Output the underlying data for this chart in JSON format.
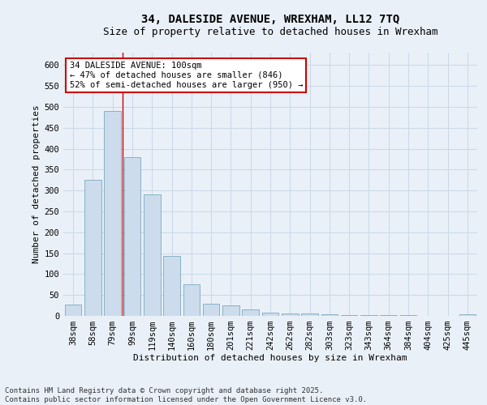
{
  "title_line1": "34, DALESIDE AVENUE, WREXHAM, LL12 7TQ",
  "title_line2": "Size of property relative to detached houses in Wrexham",
  "xlabel": "Distribution of detached houses by size in Wrexham",
  "ylabel": "Number of detached properties",
  "categories": [
    "38sqm",
    "58sqm",
    "79sqm",
    "99sqm",
    "119sqm",
    "140sqm",
    "160sqm",
    "180sqm",
    "201sqm",
    "221sqm",
    "242sqm",
    "262sqm",
    "282sqm",
    "303sqm",
    "323sqm",
    "343sqm",
    "364sqm",
    "384sqm",
    "404sqm",
    "425sqm",
    "445sqm"
  ],
  "values": [
    28,
    325,
    490,
    380,
    290,
    143,
    75,
    30,
    25,
    15,
    8,
    5,
    5,
    3,
    2,
    1,
    1,
    1,
    0,
    0,
    3
  ],
  "bar_color": "#ccdcec",
  "bar_edge_color": "#7aaabf",
  "grid_color": "#c8d8e8",
  "background_color": "#eaf0f8",
  "vline_x_index": 2,
  "vline_color": "#cc0000",
  "annotation_text": "34 DALESIDE AVENUE: 100sqm\n← 47% of detached houses are smaller (846)\n52% of semi-detached houses are larger (950) →",
  "annotation_box_color": "#ffffff",
  "annotation_box_edge": "#cc0000",
  "footer_text": "Contains HM Land Registry data © Crown copyright and database right 2025.\nContains public sector information licensed under the Open Government Licence v3.0.",
  "ylim": [
    0,
    630
  ],
  "yticks": [
    0,
    50,
    100,
    150,
    200,
    250,
    300,
    350,
    400,
    450,
    500,
    550,
    600
  ],
  "title_fontsize": 10,
  "subtitle_fontsize": 9,
  "axis_label_fontsize": 8,
  "tick_fontsize": 7.5,
  "footer_fontsize": 6.5,
  "annotation_fontsize": 7.5
}
